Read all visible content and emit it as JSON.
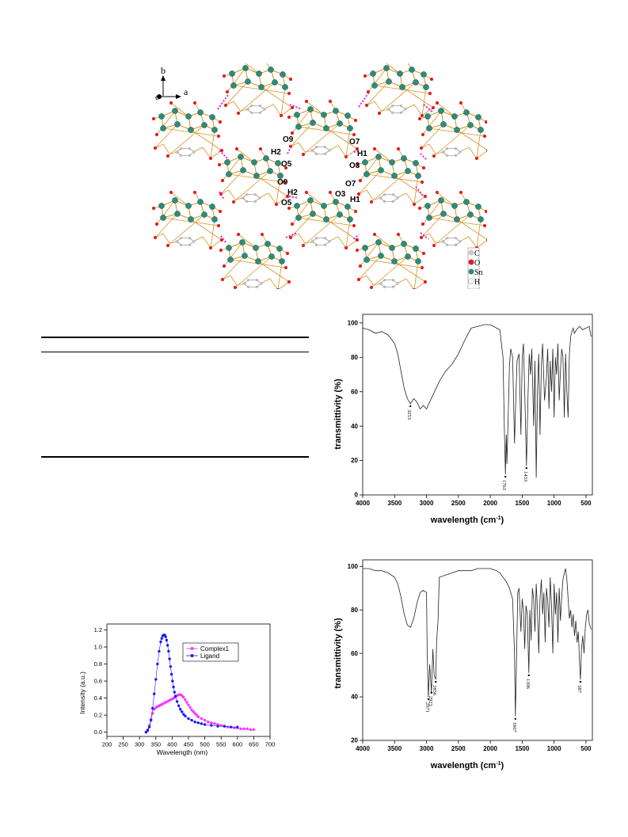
{
  "crystal_figure": {
    "axes": {
      "b": "b",
      "a": "a",
      "c": "c"
    },
    "atom_labels": [
      {
        "id": "O9a",
        "text": "O9"
      },
      {
        "id": "H2a",
        "text": "H2"
      },
      {
        "id": "O5a",
        "text": "O5"
      },
      {
        "id": "O7a",
        "text": "O7"
      },
      {
        "id": "H1a",
        "text": "H1"
      },
      {
        "id": "O3a",
        "text": "O3"
      },
      {
        "id": "O9b",
        "text": "O9"
      },
      {
        "id": "H2b",
        "text": "H2"
      },
      {
        "id": "O5b",
        "text": "O5"
      },
      {
        "id": "O7b",
        "text": "O7"
      },
      {
        "id": "O3b",
        "text": "O3"
      },
      {
        "id": "H1b",
        "text": "H1"
      }
    ],
    "legend": [
      {
        "label": "C",
        "color": "#c8c8c8"
      },
      {
        "label": "O",
        "color": "#e02020"
      },
      {
        "label": "Sn",
        "color": "#2e8b7a"
      },
      {
        "label": "H",
        "color": "#f4f4f4"
      }
    ],
    "colors": {
      "bond": "#d9921f",
      "sn": "#2e8b7a",
      "o": "#e02020",
      "c": "#c8c8c8",
      "hbond": "#e020e0"
    }
  },
  "chart_data": [
    {
      "type": "line",
      "id": "ir-1",
      "xlabel": "wavelength (cm",
      "xlabel_sup": "-1",
      "ylabel": "transmittivity (%)",
      "xlim": [
        4000,
        400
      ],
      "ylim": [
        0,
        105
      ],
      "xticks": [
        4000,
        3500,
        3000,
        2500,
        2000,
        1500,
        1000,
        500
      ],
      "yticks": [
        0,
        20,
        40,
        60,
        80,
        100
      ],
      "peak_labels": [
        {
          "x": 3253,
          "y": 53,
          "label": "3253"
        },
        {
          "x": 1763,
          "y": 12,
          "label": "1763"
        },
        {
          "x": 1433,
          "y": 17,
          "label": "1433"
        }
      ],
      "series": [
        {
          "x": [
            4000,
            3900,
            3800,
            3700,
            3600,
            3500,
            3450,
            3400,
            3350,
            3300,
            3253,
            3200,
            3150,
            3100,
            3050,
            3000,
            2950,
            2900,
            2800,
            2700,
            2600,
            2500,
            2400,
            2300,
            2200,
            2100,
            2000,
            1900,
            1850,
            1800,
            1780,
            1763,
            1750,
            1740,
            1720,
            1700,
            1680,
            1650,
            1620,
            1600,
            1580,
            1550,
            1520,
            1500,
            1480,
            1460,
            1433,
            1410,
            1390,
            1370,
            1350,
            1320,
            1300,
            1280,
            1260,
            1240,
            1220,
            1200,
            1180,
            1150,
            1120,
            1100,
            1080,
            1060,
            1040,
            1020,
            1000,
            980,
            960,
            940,
            920,
            900,
            880,
            860,
            840,
            820,
            800,
            780,
            760,
            740,
            720,
            700,
            680,
            650,
            600,
            550,
            500,
            450,
            420
          ],
          "y": [
            97,
            96,
            94,
            95,
            93,
            88,
            82,
            72,
            62,
            56,
            53,
            56,
            54,
            50,
            52,
            50,
            54,
            58,
            66,
            72,
            76,
            82,
            90,
            97,
            98,
            99,
            99,
            97,
            96,
            80,
            40,
            12,
            35,
            18,
            45,
            75,
            85,
            80,
            30,
            55,
            78,
            82,
            35,
            80,
            88,
            60,
            17,
            55,
            82,
            70,
            85,
            40,
            78,
            10,
            60,
            82,
            35,
            75,
            88,
            55,
            68,
            85,
            50,
            78,
            60,
            85,
            45,
            80,
            70,
            88,
            55,
            72,
            85,
            80,
            45,
            82,
            60,
            45,
            82,
            92,
            95,
            97,
            94,
            96,
            98,
            96,
            97,
            98,
            92
          ]
        }
      ]
    },
    {
      "type": "line",
      "id": "ir-2",
      "xlabel": "wavelength (cm",
      "xlabel_sup": "-1",
      "ylabel": "transmittivity (%)",
      "xlim": [
        4000,
        400
      ],
      "ylim": [
        20,
        103
      ],
      "xticks": [
        4000,
        3500,
        3000,
        2500,
        2000,
        1500,
        1000,
        500
      ],
      "yticks": [
        20,
        40,
        60,
        80,
        100
      ],
      "peak_labels": [
        {
          "x": 2923,
          "y": 43,
          "label": "2923"
        },
        {
          "x": 2971,
          "y": 40,
          "label": "2971"
        },
        {
          "x": 2856,
          "y": 48,
          "label": "2856"
        },
        {
          "x": 1607,
          "y": 31,
          "label": "1607"
        },
        {
          "x": 1396,
          "y": 51,
          "label": "1396"
        },
        {
          "x": 587,
          "y": 48,
          "label": "587"
        }
      ],
      "series": [
        {
          "x": [
            4000,
            3900,
            3800,
            3700,
            3600,
            3500,
            3450,
            3400,
            3350,
            3300,
            3250,
            3200,
            3150,
            3100,
            3050,
            3000,
            2990,
            2971,
            2950,
            2923,
            2900,
            2880,
            2856,
            2840,
            2820,
            2800,
            2700,
            2600,
            2500,
            2400,
            2300,
            2200,
            2100,
            2000,
            1900,
            1850,
            1800,
            1750,
            1700,
            1650,
            1620,
            1607,
            1590,
            1570,
            1550,
            1520,
            1500,
            1480,
            1460,
            1440,
            1420,
            1396,
            1380,
            1360,
            1340,
            1320,
            1300,
            1280,
            1260,
            1240,
            1220,
            1200,
            1180,
            1160,
            1140,
            1120,
            1100,
            1080,
            1060,
            1040,
            1020,
            1000,
            980,
            960,
            940,
            920,
            900,
            880,
            860,
            840,
            820,
            800,
            780,
            760,
            740,
            720,
            700,
            680,
            660,
            640,
            620,
            600,
            587,
            570,
            550,
            530,
            510,
            490,
            470,
            450,
            430,
            420
          ],
          "y": [
            99,
            99,
            98,
            98,
            97,
            95,
            92,
            86,
            78,
            73,
            72,
            76,
            83,
            88,
            89,
            88,
            60,
            40,
            55,
            42,
            62,
            50,
            48,
            66,
            75,
            95,
            96,
            97,
            98,
            98,
            98,
            99,
            99,
            99,
            98,
            97,
            95,
            93,
            90,
            85,
            60,
            31,
            55,
            88,
            90,
            70,
            85,
            80,
            62,
            82,
            78,
            51,
            80,
            66,
            90,
            85,
            70,
            92,
            80,
            60,
            85,
            94,
            78,
            88,
            65,
            90,
            84,
            72,
            95,
            82,
            60,
            92,
            78,
            88,
            65,
            90,
            75,
            86,
            94,
            97,
            99,
            94,
            85,
            76,
            80,
            72,
            78,
            68,
            75,
            65,
            70,
            55,
            48,
            62,
            68,
            60,
            72,
            78,
            80,
            74,
            72,
            71
          ]
        }
      ]
    },
    {
      "type": "scatter",
      "id": "pl",
      "xlabel": "Wavelength (nm)",
      "ylabel": "Intensity (a.u.)",
      "xlim": [
        200,
        700
      ],
      "ylim": [
        -0.05,
        1.27
      ],
      "xticks": [
        200,
        250,
        300,
        350,
        400,
        450,
        500,
        550,
        600,
        650,
        700
      ],
      "yticks": [
        "0.0",
        "0.2",
        "0.4",
        "0.6",
        "0.8",
        "1.0",
        "1.2"
      ],
      "legend": "top-right",
      "series": [
        {
          "name": "Complex1",
          "color": "#ff33ff",
          "x": [
            320,
            325,
            330,
            335,
            340,
            345,
            350,
            355,
            360,
            365,
            370,
            375,
            380,
            385,
            390,
            395,
            400,
            405,
            410,
            415,
            420,
            425,
            430,
            435,
            440,
            445,
            450,
            455,
            460,
            465,
            470,
            475,
            480,
            490,
            500,
            510,
            520,
            530,
            540,
            550,
            560,
            570,
            580,
            590,
            600,
            610,
            620,
            630,
            640,
            650
          ],
          "y": [
            0.0,
            0.03,
            0.08,
            0.15,
            0.22,
            0.27,
            0.29,
            0.3,
            0.31,
            0.32,
            0.33,
            0.34,
            0.35,
            0.36,
            0.37,
            0.38,
            0.39,
            0.4,
            0.42,
            0.43,
            0.44,
            0.44,
            0.43,
            0.41,
            0.38,
            0.35,
            0.32,
            0.29,
            0.26,
            0.24,
            0.22,
            0.2,
            0.18,
            0.16,
            0.14,
            0.12,
            0.11,
            0.1,
            0.09,
            0.08,
            0.07,
            0.06,
            0.06,
            0.05,
            0.05,
            0.04,
            0.04,
            0.04,
            0.03,
            0.03
          ]
        },
        {
          "name": "Ligand",
          "color": "#1a1aff",
          "x": [
            320,
            325,
            330,
            335,
            340,
            345,
            350,
            355,
            360,
            365,
            368,
            371,
            374,
            377,
            380,
            383,
            386,
            389,
            392,
            395,
            398,
            401,
            404,
            407,
            410,
            415,
            420,
            425,
            430,
            435,
            440,
            450,
            460,
            470,
            480,
            490,
            500,
            520,
            540,
            560,
            580,
            600
          ],
          "y": [
            0.0,
            0.02,
            0.06,
            0.14,
            0.28,
            0.45,
            0.62,
            0.8,
            0.95,
            1.06,
            1.1,
            1.13,
            1.14,
            1.14,
            1.12,
            1.08,
            1.02,
            0.95,
            0.86,
            0.77,
            0.68,
            0.6,
            0.53,
            0.47,
            0.42,
            0.36,
            0.31,
            0.27,
            0.24,
            0.21,
            0.19,
            0.16,
            0.14,
            0.12,
            0.11,
            0.1,
            0.09,
            0.08,
            0.07,
            0.07,
            0.06,
            0.06
          ]
        }
      ]
    }
  ]
}
